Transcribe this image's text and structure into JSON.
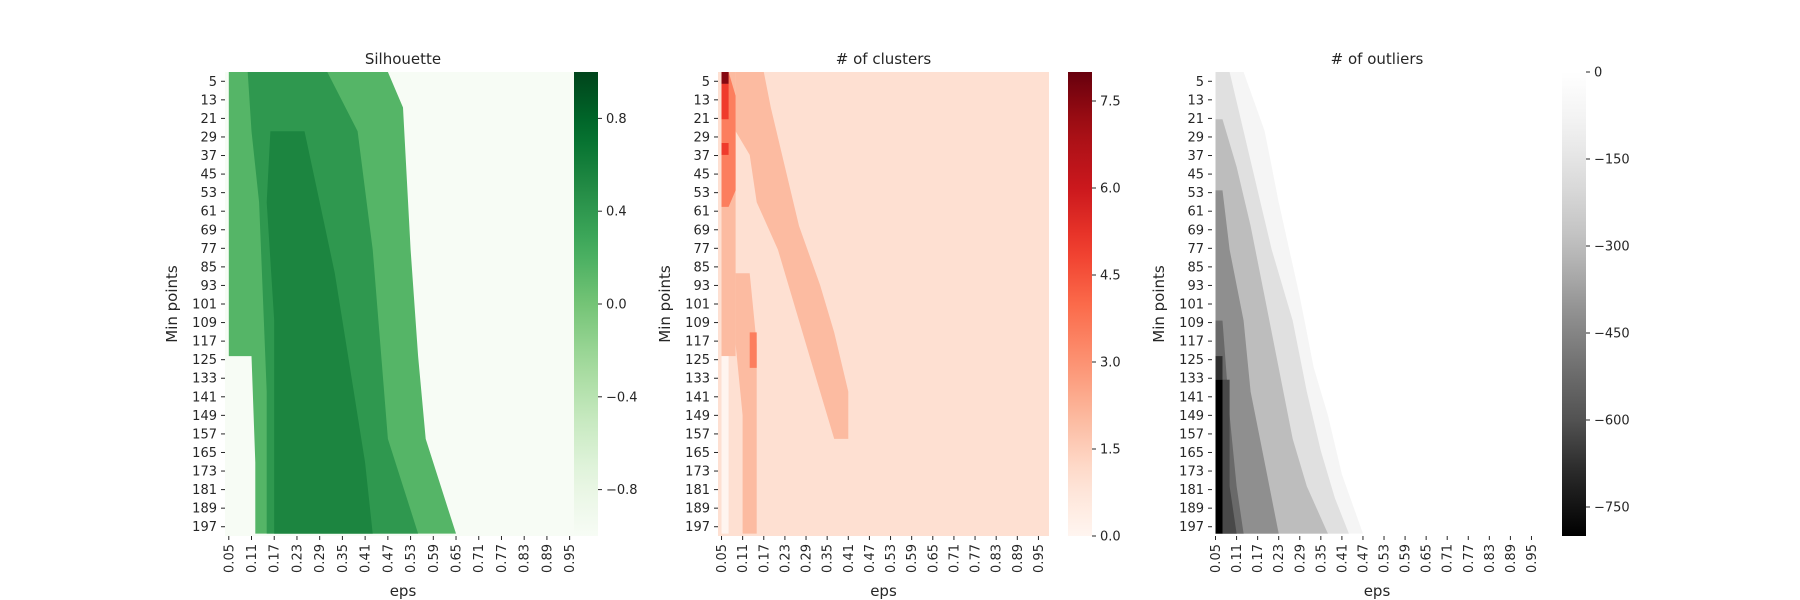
{
  "chart_data": [
    {
      "type": "heatmap",
      "title": "Silhouette",
      "xlabel": "eps",
      "ylabel": "Min points",
      "xticks": [
        "0.05",
        "0.11",
        "0.17",
        "0.23",
        "0.29",
        "0.35",
        "0.41",
        "0.47",
        "0.53",
        "0.59",
        "0.65",
        "0.71",
        "0.77",
        "0.83",
        "0.89",
        "0.95"
      ],
      "yticks": [
        "5",
        "13",
        "21",
        "29",
        "37",
        "45",
        "53",
        "61",
        "69",
        "77",
        "85",
        "93",
        "101",
        "109",
        "117",
        "125",
        "133",
        "141",
        "149",
        "157",
        "165",
        "173",
        "181",
        "189",
        "197"
      ],
      "colormap": "Greens",
      "colorbar_range": [
        -1,
        1
      ],
      "colorbar_ticks": [
        "0.8",
        "0.4",
        "0.0",
        "−0.4",
        "−0.8"
      ],
      "colorbar_tick_values": [
        0.8,
        0.4,
        0.0,
        -0.4,
        -0.8
      ],
      "background_value": -1,
      "regions": [
        {
          "value": 0.15,
          "boundary": [
            [
              0.05,
              5
            ],
            [
              0.47,
              5
            ],
            [
              0.51,
              20
            ],
            [
              0.53,
              80
            ],
            [
              0.55,
              125
            ],
            [
              0.57,
              160
            ],
            [
              0.63,
              190
            ],
            [
              0.65,
              200
            ],
            [
              0.12,
              200
            ],
            [
              0.12,
              170
            ],
            [
              0.11,
              125
            ],
            [
              0.05,
              125
            ]
          ]
        },
        {
          "value": 0.4,
          "boundary": [
            [
              0.1,
              5
            ],
            [
              0.31,
              5
            ],
            [
              0.39,
              30
            ],
            [
              0.43,
              80
            ],
            [
              0.45,
              120
            ],
            [
              0.47,
              160
            ],
            [
              0.53,
              190
            ],
            [
              0.55,
              200
            ],
            [
              0.15,
              200
            ],
            [
              0.15,
              140
            ],
            [
              0.13,
              60
            ],
            [
              0.11,
              30
            ]
          ]
        },
        {
          "value": 0.55,
          "boundary": [
            [
              0.16,
              30
            ],
            [
              0.25,
              30
            ],
            [
              0.29,
              60
            ],
            [
              0.33,
              90
            ],
            [
              0.37,
              130
            ],
            [
              0.41,
              170
            ],
            [
              0.43,
              200
            ],
            [
              0.17,
              200
            ],
            [
              0.17,
              110
            ],
            [
              0.15,
              60
            ]
          ]
        }
      ]
    },
    {
      "type": "heatmap",
      "title": "# of clusters",
      "xlabel": "eps",
      "ylabel": "Min points",
      "xticks": [
        "0.05",
        "0.11",
        "0.17",
        "0.23",
        "0.29",
        "0.35",
        "0.41",
        "0.47",
        "0.53",
        "0.59",
        "0.65",
        "0.71",
        "0.77",
        "0.83",
        "0.89",
        "0.95"
      ],
      "yticks": [
        "5",
        "13",
        "21",
        "29",
        "37",
        "45",
        "53",
        "61",
        "69",
        "77",
        "85",
        "93",
        "101",
        "109",
        "117",
        "125",
        "133",
        "141",
        "149",
        "157",
        "165",
        "173",
        "181",
        "189",
        "197"
      ],
      "colormap": "Reds",
      "colorbar_range": [
        0,
        8
      ],
      "colorbar_ticks": [
        "7.5",
        "6.0",
        "4.5",
        "3.0",
        "1.5",
        "0.0"
      ],
      "colorbar_tick_values": [
        7.5,
        6.0,
        4.5,
        3.0,
        1.5,
        0.0
      ],
      "background_value": 1,
      "regions": [
        {
          "value": 2,
          "boundary": [
            [
              0.09,
              5
            ],
            [
              0.17,
              5
            ],
            [
              0.19,
              20
            ],
            [
              0.23,
              45
            ],
            [
              0.27,
              70
            ],
            [
              0.33,
              95
            ],
            [
              0.37,
              115
            ],
            [
              0.41,
              140
            ],
            [
              0.41,
              160
            ],
            [
              0.37,
              160
            ],
            [
              0.33,
              140
            ],
            [
              0.27,
              110
            ],
            [
              0.21,
              80
            ],
            [
              0.15,
              60
            ],
            [
              0.13,
              40
            ],
            [
              0.09,
              30
            ]
          ]
        },
        {
          "value": 2,
          "boundary": [
            [
              0.09,
              90
            ],
            [
              0.13,
              90
            ],
            [
              0.15,
              120
            ],
            [
              0.15,
              200
            ],
            [
              0.11,
              200
            ],
            [
              0.11,
              150
            ],
            [
              0.09,
              120
            ]
          ]
        },
        {
          "value": 2,
          "boundary": [
            [
              0.05,
              5
            ],
            [
              0.09,
              5
            ],
            [
              0.09,
              125
            ],
            [
              0.05,
              125
            ]
          ]
        },
        {
          "value": 3.5,
          "boundary": [
            [
              0.05,
              5
            ],
            [
              0.07,
              5
            ],
            [
              0.09,
              15
            ],
            [
              0.09,
              55
            ],
            [
              0.07,
              62
            ],
            [
              0.05,
              62
            ]
          ]
        },
        {
          "value": 3.5,
          "boundary": [
            [
              0.13,
              115
            ],
            [
              0.15,
              115
            ],
            [
              0.15,
              130
            ],
            [
              0.13,
              130
            ]
          ]
        },
        {
          "value": 5,
          "boundary": [
            [
              0.05,
              10
            ],
            [
              0.07,
              10
            ],
            [
              0.07,
              25
            ],
            [
              0.05,
              25
            ]
          ]
        },
        {
          "value": 5,
          "boundary": [
            [
              0.05,
              35
            ],
            [
              0.07,
              35
            ],
            [
              0.07,
              40
            ],
            [
              0.05,
              40
            ]
          ]
        },
        {
          "value": 7.5,
          "boundary": [
            [
              0.05,
              5
            ],
            [
              0.07,
              5
            ],
            [
              0.07,
              10
            ],
            [
              0.05,
              10
            ]
          ]
        },
        {
          "value": 0,
          "boundary": [
            [
              0.05,
              125
            ],
            [
              0.07,
              125
            ],
            [
              0.07,
              200
            ],
            [
              0.05,
              200
            ]
          ]
        }
      ]
    },
    {
      "type": "heatmap",
      "title": "# of outliers",
      "xlabel": "eps",
      "ylabel": "Min points",
      "xticks": [
        "0.05",
        "0.11",
        "0.17",
        "0.23",
        "0.29",
        "0.35",
        "0.41",
        "0.47",
        "0.53",
        "0.59",
        "0.65",
        "0.71",
        "0.77",
        "0.83",
        "0.89",
        "0.95"
      ],
      "yticks": [
        "5",
        "13",
        "21",
        "29",
        "37",
        "45",
        "53",
        "61",
        "69",
        "77",
        "85",
        "93",
        "101",
        "109",
        "117",
        "125",
        "133",
        "141",
        "149",
        "157",
        "165",
        "173",
        "181",
        "189",
        "197"
      ],
      "colormap": "Greys",
      "colorbar_range": [
        -800,
        0
      ],
      "colorbar_ticks": [
        "0",
        "−150",
        "−300",
        "−450",
        "−600",
        "−750"
      ],
      "colorbar_tick_values": [
        0,
        -150,
        -300,
        -450,
        -600,
        -750
      ],
      "background_value": 0,
      "regions": [
        {
          "value": -70,
          "boundary": [
            [
              0.05,
              5
            ],
            [
              0.13,
              5
            ],
            [
              0.19,
              30
            ],
            [
              0.23,
              60
            ],
            [
              0.29,
              100
            ],
            [
              0.33,
              130
            ],
            [
              0.37,
              150
            ],
            [
              0.41,
              175
            ],
            [
              0.47,
              200
            ],
            [
              0.05,
              200
            ]
          ]
        },
        {
          "value": -170,
          "boundary": [
            [
              0.05,
              5
            ],
            [
              0.09,
              5
            ],
            [
              0.13,
              30
            ],
            [
              0.17,
              55
            ],
            [
              0.21,
              80
            ],
            [
              0.27,
              110
            ],
            [
              0.31,
              140
            ],
            [
              0.35,
              165
            ],
            [
              0.39,
              185
            ],
            [
              0.43,
              200
            ],
            [
              0.05,
              200
            ]
          ]
        },
        {
          "value": -300,
          "boundary": [
            [
              0.05,
              25
            ],
            [
              0.07,
              25
            ],
            [
              0.11,
              45
            ],
            [
              0.15,
              70
            ],
            [
              0.19,
              100
            ],
            [
              0.23,
              130
            ],
            [
              0.27,
              160
            ],
            [
              0.31,
              180
            ],
            [
              0.37,
              200
            ],
            [
              0.05,
              200
            ]
          ]
        },
        {
          "value": -420,
          "boundary": [
            [
              0.05,
              55
            ],
            [
              0.07,
              55
            ],
            [
              0.09,
              80
            ],
            [
              0.13,
              110
            ],
            [
              0.15,
              140
            ],
            [
              0.19,
              170
            ],
            [
              0.23,
              200
            ],
            [
              0.05,
              200
            ]
          ]
        },
        {
          "value": -530,
          "boundary": [
            [
              0.05,
              110
            ],
            [
              0.07,
              110
            ],
            [
              0.09,
              150
            ],
            [
              0.11,
              180
            ],
            [
              0.13,
              200
            ],
            [
              0.05,
              200
            ]
          ]
        },
        {
          "value": -680,
          "boundary": [
            [
              0.05,
              125
            ],
            [
              0.07,
              125
            ],
            [
              0.07,
              135
            ],
            [
              0.05,
              135
            ]
          ]
        },
        {
          "value": -620,
          "boundary": [
            [
              0.07,
              135
            ],
            [
              0.09,
              135
            ],
            [
              0.09,
              180
            ],
            [
              0.11,
              200
            ],
            [
              0.07,
              200
            ]
          ]
        },
        {
          "value": -900,
          "boundary": [
            [
              0.05,
              135
            ],
            [
              0.07,
              135
            ],
            [
              0.07,
              200
            ],
            [
              0.05,
              200
            ]
          ]
        }
      ]
    }
  ]
}
